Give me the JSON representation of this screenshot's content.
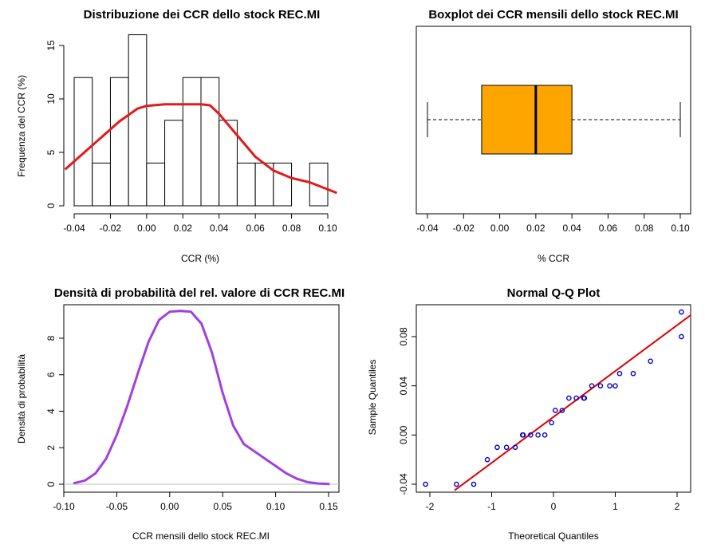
{
  "colors": {
    "kde_line": "#e31a1c",
    "box_fill": "#ffa500",
    "density_line": "#a040e0",
    "qq_points": "#0000cc",
    "qq_line": "#dd0000",
    "zero_line": "#bebebe"
  },
  "chart_data": [
    {
      "type": "bar",
      "subtype": "histogram",
      "title": "Distribuzione dei CCR dello stock REC.MI",
      "xlabel": "CCR (%)",
      "ylabel": "Frequenza del CCR (%)",
      "xlim": [
        -0.045,
        0.105
      ],
      "ylim": [
        0,
        16
      ],
      "x_ticks": [
        "-0.04",
        "-0.02",
        "0.00",
        "0.02",
        "0.04",
        "0.06",
        "0.08",
        "0.10"
      ],
      "x_tick_values": [
        -0.04,
        -0.02,
        0.0,
        0.02,
        0.04,
        0.06,
        0.08,
        0.1
      ],
      "y_ticks": [
        "0",
        "5",
        "10",
        "15"
      ],
      "y_tick_values": [
        0,
        5,
        10,
        15
      ],
      "bins": [
        {
          "x0": -0.04,
          "x1": -0.03,
          "value": 12
        },
        {
          "x0": -0.03,
          "x1": -0.02,
          "value": 4
        },
        {
          "x0": -0.02,
          "x1": -0.01,
          "value": 12
        },
        {
          "x0": -0.01,
          "x1": 0.0,
          "value": 16
        },
        {
          "x0": 0.0,
          "x1": 0.01,
          "value": 4
        },
        {
          "x0": 0.01,
          "x1": 0.02,
          "value": 8
        },
        {
          "x0": 0.02,
          "x1": 0.03,
          "value": 12
        },
        {
          "x0": 0.03,
          "x1": 0.04,
          "value": 12
        },
        {
          "x0": 0.04,
          "x1": 0.05,
          "value": 8
        },
        {
          "x0": 0.05,
          "x1": 0.06,
          "value": 4
        },
        {
          "x0": 0.06,
          "x1": 0.07,
          "value": 4
        },
        {
          "x0": 0.07,
          "x1": 0.08,
          "value": 4
        },
        {
          "x0": 0.08,
          "x1": 0.09,
          "value": 0
        },
        {
          "x0": 0.09,
          "x1": 0.1,
          "value": 4
        }
      ],
      "overlay_line": {
        "x": [
          -0.045,
          -0.035,
          -0.025,
          -0.015,
          -0.005,
          0.0,
          0.01,
          0.02,
          0.03,
          0.035,
          0.04,
          0.05,
          0.06,
          0.07,
          0.08,
          0.09,
          0.105
        ],
        "y": [
          3.4,
          4.9,
          6.4,
          7.9,
          9.1,
          9.35,
          9.5,
          9.5,
          9.5,
          9.4,
          8.6,
          6.6,
          4.6,
          3.3,
          2.6,
          2.2,
          1.2
        ]
      }
    },
    {
      "type": "boxplot",
      "title": "Boxplot dei CCR mensili dello stock REC.MI",
      "xlabel": "% CCR",
      "xlim": [
        -0.045,
        0.105
      ],
      "x_ticks": [
        "-0.04",
        "-0.02",
        "0.00",
        "0.02",
        "0.04",
        "0.06",
        "0.08",
        "0.10"
      ],
      "x_tick_values": [
        -0.04,
        -0.02,
        0.0,
        0.02,
        0.04,
        0.06,
        0.08,
        0.1
      ],
      "whisker_low": -0.04,
      "q1": -0.01,
      "median": 0.02,
      "q3": 0.04,
      "whisker_high": 0.1
    },
    {
      "type": "line",
      "subtype": "density",
      "title": "Densità di probabilità del rel. valore di CCR REC.MI",
      "xlabel": "CCR mensili dello stock REC.MI",
      "ylabel": "Densità di probabilità",
      "xlim": [
        -0.1,
        0.16
      ],
      "ylim": [
        0,
        9.8
      ],
      "x_ticks": [
        "-0.10",
        "-0.05",
        "0.00",
        "0.05",
        "0.10",
        "0.15"
      ],
      "x_tick_values": [
        -0.1,
        -0.05,
        0.0,
        0.05,
        0.1,
        0.15
      ],
      "y_ticks": [
        "0",
        "2",
        "4",
        "6",
        "8"
      ],
      "y_tick_values": [
        0,
        2,
        4,
        6,
        8
      ],
      "x": [
        -0.091,
        -0.08,
        -0.07,
        -0.06,
        -0.05,
        -0.04,
        -0.03,
        -0.02,
        -0.01,
        0.0,
        0.01,
        0.02,
        0.03,
        0.04,
        0.05,
        0.06,
        0.07,
        0.08,
        0.09,
        0.1,
        0.11,
        0.12,
        0.13,
        0.14,
        0.151
      ],
      "y": [
        0.05,
        0.2,
        0.6,
        1.4,
        2.7,
        4.3,
        6.1,
        7.8,
        9.0,
        9.45,
        9.5,
        9.45,
        8.8,
        7.2,
        5.0,
        3.2,
        2.2,
        1.8,
        1.4,
        1.0,
        0.6,
        0.3,
        0.12,
        0.04,
        0.01
      ]
    },
    {
      "type": "scatter",
      "subtype": "qq",
      "title": "Normal Q-Q Plot",
      "xlabel": "Theoretical Quantiles",
      "ylabel": "Sample Quantiles",
      "xlim": [
        -2.2,
        2.2
      ],
      "ylim": [
        -0.045,
        0.105
      ],
      "x_ticks": [
        "-2",
        "-1",
        "0",
        "1",
        "2"
      ],
      "x_tick_values": [
        -2,
        -1,
        0,
        1,
        2
      ],
      "y_ticks": [
        "-0.04",
        "0.00",
        "0.04",
        "0.08"
      ],
      "y_tick_values": [
        -0.04,
        0.0,
        0.04,
        0.08
      ],
      "points": [
        [
          -2.07,
          -0.04
        ],
        [
          -1.57,
          -0.04
        ],
        [
          -1.29,
          -0.04
        ],
        [
          -1.07,
          -0.02
        ],
        [
          -0.91,
          -0.01
        ],
        [
          -0.76,
          -0.01
        ],
        [
          -0.62,
          -0.01
        ],
        [
          -0.49,
          0.0
        ],
        [
          -0.37,
          0.0
        ],
        [
          -0.25,
          0.0
        ],
        [
          -0.14,
          0.0
        ],
        [
          -0.03,
          0.01
        ],
        [
          0.03,
          0.02
        ],
        [
          0.14,
          0.02
        ],
        [
          0.25,
          0.03
        ],
        [
          0.37,
          0.03
        ],
        [
          0.49,
          0.03
        ],
        [
          0.62,
          0.04
        ],
        [
          0.76,
          0.04
        ],
        [
          0.91,
          0.04
        ],
        [
          1.07,
          0.05
        ],
        [
          1.29,
          0.05
        ],
        [
          1.57,
          0.06
        ],
        [
          2.07,
          0.08
        ],
        [
          0.5,
          0.03
        ],
        [
          1.0,
          0.04
        ],
        [
          -0.5,
          0.0
        ],
        [
          2.07,
          0.1
        ]
      ],
      "reference_line": {
        "x": [
          -1.6,
          2.25
        ],
        "y": [
          -0.045,
          0.0975
        ]
      }
    }
  ]
}
